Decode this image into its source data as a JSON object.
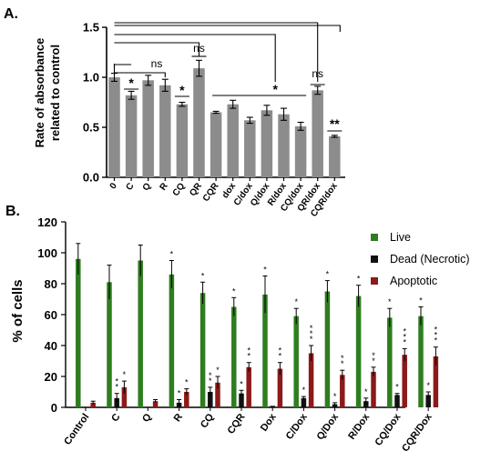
{
  "colors": {
    "gray_bar": "#8c8c8c",
    "live": "#2e7d1f",
    "dead": "#111111",
    "apoptotic": "#8b1a1a",
    "axis": "#000000"
  },
  "chart_data": [
    {
      "panel_label": "A.",
      "type": "bar",
      "ylabel": "Rate of absorbance\nrelated to control",
      "ylim": [
        0,
        1.5
      ],
      "yticks": [
        "0.0",
        "0.5",
        "1.0",
        "1.5"
      ],
      "categories": [
        "0",
        "C",
        "Q",
        "R",
        "CQ",
        "QR",
        "CQR",
        "dox",
        "C/dox",
        "Q/dox",
        "R/dox",
        "CQ/dox",
        "QR/dox",
        "CQR/dox"
      ],
      "values": [
        1.0,
        0.82,
        0.97,
        0.92,
        0.73,
        1.09,
        0.65,
        0.73,
        0.57,
        0.67,
        0.63,
        0.51,
        0.87,
        0.41
      ],
      "errors": [
        0.04,
        0.04,
        0.05,
        0.06,
        0.02,
        0.08,
        0.01,
        0.04,
        0.03,
        0.05,
        0.06,
        0.04,
        0.04,
        0.01
      ],
      "annotations": [
        "*",
        "ns",
        "*",
        "ns",
        "*",
        "ns",
        "**"
      ]
    },
    {
      "panel_label": "B.",
      "type": "bar",
      "ylabel": "% of cells",
      "ylim": [
        0,
        120
      ],
      "yticks": [
        "0",
        "20",
        "40",
        "60",
        "80",
        "100",
        "120"
      ],
      "categories": [
        "Control",
        "C",
        "Q",
        "R",
        "CQ",
        "CQR",
        "Dox",
        "C/Dox",
        "Q/Dox",
        "R/Dox",
        "CQ/Dox",
        "CQR/Dox"
      ],
      "legend_position": "top-right",
      "series": [
        {
          "name": "Live",
          "values": [
            96,
            81,
            95,
            86,
            74,
            65,
            73,
            59,
            75,
            72,
            58,
            59
          ],
          "errors": [
            10,
            11,
            10,
            9,
            7,
            6,
            12,
            5,
            7,
            7,
            6,
            6
          ],
          "marks": [
            "",
            "",
            "",
            "*",
            "*",
            "*",
            "*",
            "*",
            "*",
            "*",
            "*",
            "*"
          ]
        },
        {
          "name": "Dead (Necrotic)",
          "values": [
            0,
            6,
            0,
            3,
            10,
            9,
            1,
            6,
            2,
            4,
            8,
            8
          ],
          "errors": [
            0,
            3,
            0,
            2,
            3,
            2,
            0,
            1,
            1,
            2,
            1,
            2
          ],
          "marks": [
            "",
            "**",
            "",
            "*",
            "**",
            "*",
            "",
            "*",
            "*",
            "*",
            "*",
            "*"
          ]
        },
        {
          "name": "Apoptotic",
          "values": [
            3,
            13,
            4,
            10,
            16,
            26,
            25,
            35,
            21,
            23,
            34,
            33
          ],
          "errors": [
            1,
            4,
            1,
            2,
            4,
            3,
            4,
            5,
            3,
            3,
            4,
            6
          ],
          "marks": [
            "",
            "*",
            "",
            "*",
            "*",
            "**",
            "**",
            "***",
            "**",
            "**",
            "***",
            "***"
          ]
        }
      ]
    }
  ]
}
